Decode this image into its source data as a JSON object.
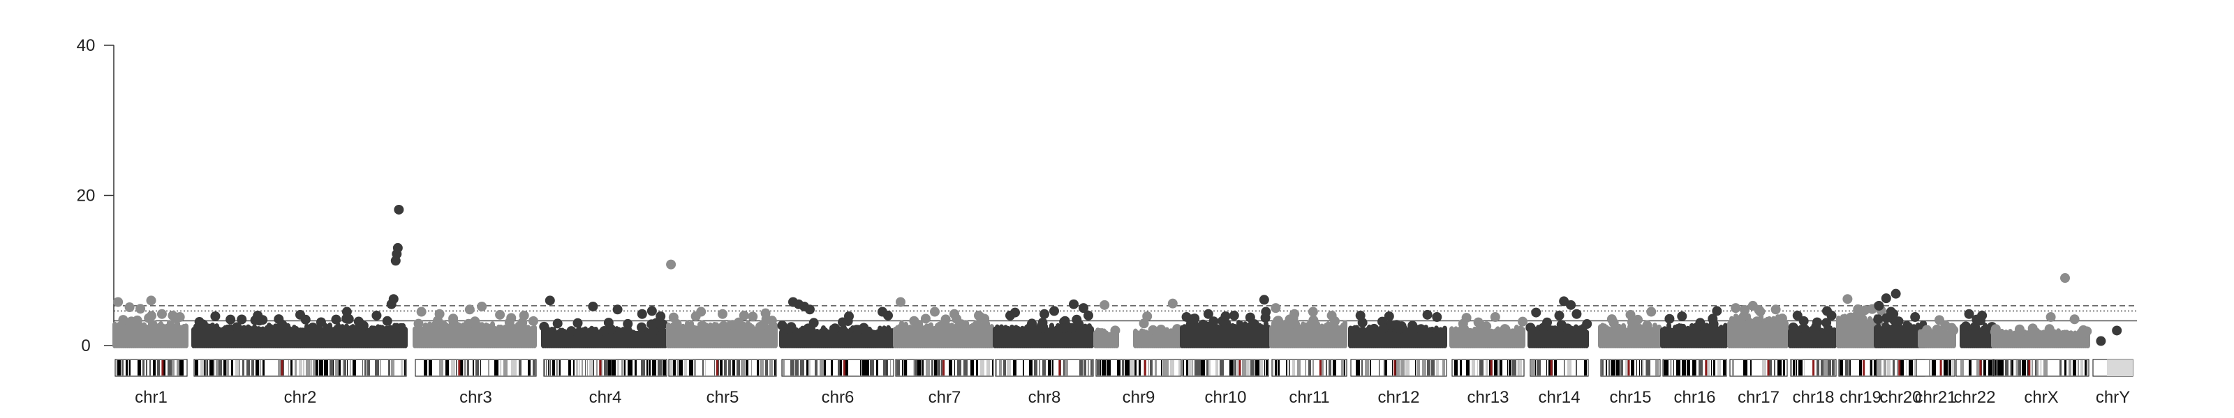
{
  "chart_data": {
    "type": "scatter",
    "title": "",
    "xlabel": "",
    "ylabel": "",
    "ylim": [
      0,
      40
    ],
    "yticks": [
      0,
      20,
      40
    ],
    "threshold_lines": [
      {
        "value": 5.3,
        "style": "dashed"
      },
      {
        "value": 4.6,
        "style": "dotted"
      },
      {
        "value": 3.3,
        "style": "solid"
      }
    ],
    "colors": {
      "dark": "#3a3a3a",
      "light": "#8c8c8c",
      "axis": "#333333"
    },
    "chromosomes": [
      {
        "name": "chr1",
        "label": "chr1",
        "color": "light",
        "base_top": 3.4,
        "base_mid": 2.6,
        "sig": [
          [
            0.04,
            5.8
          ],
          [
            0.2,
            5.1
          ],
          [
            0.35,
            4.9
          ],
          [
            0.5,
            6.0
          ],
          [
            0.65,
            4.2
          ],
          [
            0.8,
            4.0
          ],
          [
            0.9,
            3.8
          ]
        ]
      },
      {
        "name": "chr2",
        "label": "chr2",
        "color": "dark",
        "base_top": 3.0,
        "base_mid": 2.3,
        "sig": [
          [
            0.1,
            3.9
          ],
          [
            0.3,
            4.0
          ],
          [
            0.5,
            4.1
          ],
          [
            0.72,
            4.5
          ],
          [
            0.86,
            4.0
          ],
          [
            0.93,
            5.5
          ],
          [
            0.94,
            6.2
          ],
          [
            0.95,
            11.3
          ],
          [
            0.955,
            12.2
          ],
          [
            0.96,
            13.0
          ],
          [
            0.965,
            18.1
          ]
        ]
      },
      {
        "name": "chr3",
        "label": "chr3",
        "color": "light",
        "base_top": 3.2,
        "base_mid": 2.5,
        "sig": [
          [
            0.05,
            4.5
          ],
          [
            0.2,
            4.2
          ],
          [
            0.45,
            4.8
          ],
          [
            0.55,
            5.2
          ],
          [
            0.7,
            4.1
          ],
          [
            0.9,
            4.0
          ]
        ]
      },
      {
        "name": "chr4",
        "label": "chr4",
        "color": "dark",
        "base_top": 2.6,
        "base_mid": 1.9,
        "sig": [
          [
            0.05,
            6.0
          ],
          [
            0.4,
            5.2
          ],
          [
            0.6,
            4.8
          ],
          [
            0.8,
            4.2
          ],
          [
            0.88,
            4.6
          ],
          [
            0.95,
            3.9
          ]
        ]
      },
      {
        "name": "chr5",
        "label": "chr5",
        "color": "light",
        "base_top": 3.3,
        "base_mid": 2.5,
        "sig": [
          [
            0.02,
            10.8
          ],
          [
            0.3,
            4.5
          ],
          [
            0.5,
            4.2
          ],
          [
            0.7,
            4.0
          ],
          [
            0.9,
            4.3
          ]
        ]
      },
      {
        "name": "chr6",
        "label": "chr6",
        "color": "dark",
        "base_top": 2.7,
        "base_mid": 2.0,
        "sig": [
          [
            0.1,
            5.8
          ],
          [
            0.15,
            5.5
          ],
          [
            0.2,
            5.2
          ],
          [
            0.25,
            4.8
          ],
          [
            0.6,
            3.9
          ],
          [
            0.9,
            4.5
          ],
          [
            0.95,
            4.0
          ]
        ]
      },
      {
        "name": "chr7",
        "label": "chr7",
        "color": "light",
        "base_top": 3.3,
        "base_mid": 2.5,
        "sig": [
          [
            0.05,
            5.8
          ],
          [
            0.4,
            4.5
          ],
          [
            0.6,
            4.2
          ],
          [
            0.85,
            4.0
          ]
        ]
      },
      {
        "name": "chr8",
        "label": "chr8",
        "color": "dark",
        "base_top": 3.0,
        "base_mid": 2.3,
        "sig": [
          [
            0.15,
            4.0
          ],
          [
            0.2,
            4.4
          ],
          [
            0.5,
            4.2
          ],
          [
            0.6,
            4.6
          ],
          [
            0.8,
            5.5
          ],
          [
            0.9,
            5.0
          ],
          [
            0.95,
            4.0
          ]
        ]
      },
      {
        "name": "chr9",
        "label": "chr9",
        "color": "light",
        "base_top": 2.4,
        "base_mid": 1.8,
        "gap": [
          0.25,
          0.45
        ],
        "sig": [
          [
            0.1,
            5.4
          ],
          [
            0.6,
            3.9
          ],
          [
            0.9,
            5.6
          ]
        ]
      },
      {
        "name": "chr10",
        "label": "chr10",
        "color": "dark",
        "base_top": 3.4,
        "base_mid": 2.6,
        "sig": [
          [
            0.3,
            4.2
          ],
          [
            0.5,
            3.9
          ],
          [
            0.6,
            4.0
          ],
          [
            0.95,
            6.1
          ],
          [
            0.97,
            4.5
          ]
        ]
      },
      {
        "name": "chr11",
        "label": "chr11",
        "color": "light",
        "base_top": 3.4,
        "base_mid": 2.6,
        "sig": [
          [
            0.05,
            5.0
          ],
          [
            0.3,
            4.2
          ],
          [
            0.55,
            4.5
          ],
          [
            0.8,
            4.0
          ]
        ]
      },
      {
        "name": "chr12",
        "label": "chr12",
        "color": "dark",
        "base_top": 2.8,
        "base_mid": 2.1,
        "sig": [
          [
            0.1,
            4.0
          ],
          [
            0.4,
            3.9
          ],
          [
            0.8,
            4.1
          ],
          [
            0.9,
            3.8
          ]
        ]
      },
      {
        "name": "chr13",
        "label": "chr13",
        "color": "light",
        "base_top": 2.8,
        "base_mid": 2.1,
        "sig": [
          [
            0.2,
            3.7
          ],
          [
            0.6,
            3.8
          ]
        ]
      },
      {
        "name": "chr14",
        "label": "chr14",
        "color": "dark",
        "base_top": 2.8,
        "base_mid": 2.1,
        "sig": [
          [
            0.1,
            4.4
          ],
          [
            0.5,
            4.0
          ],
          [
            0.58,
            5.9
          ],
          [
            0.7,
            5.4
          ],
          [
            0.8,
            4.2
          ]
        ]
      },
      {
        "name": "chr15",
        "label": "chr15",
        "color": "light",
        "base_top": 3.0,
        "base_mid": 2.3,
        "sig": [
          [
            0.5,
            4.1
          ],
          [
            0.85,
            4.5
          ]
        ]
      },
      {
        "name": "chr16",
        "label": "chr16",
        "color": "dark",
        "base_top": 3.0,
        "base_mid": 2.3,
        "sig": [
          [
            0.3,
            3.9
          ],
          [
            0.85,
            4.6
          ]
        ]
      },
      {
        "name": "chr17",
        "label": "chr17",
        "color": "light",
        "base_top": 4.2,
        "base_mid": 3.0,
        "sig": [
          [
            0.1,
            5.0
          ],
          [
            0.4,
            5.3
          ],
          [
            0.8,
            4.8
          ]
        ]
      },
      {
        "name": "chr18",
        "label": "chr18",
        "color": "dark",
        "base_top": 2.7,
        "base_mid": 2.0,
        "sig": [
          [
            0.15,
            4.0
          ],
          [
            0.8,
            4.6
          ],
          [
            0.9,
            4.0
          ]
        ]
      },
      {
        "name": "chr19",
        "label": "chr19",
        "color": "light",
        "base_top": 4.3,
        "base_mid": 3.1,
        "sig": [
          [
            0.2,
            6.2
          ],
          [
            0.6,
            4.7
          ],
          [
            0.9,
            5.2
          ]
        ]
      },
      {
        "name": "chr20",
        "label": "chr20",
        "color": "dark",
        "base_top": 3.3,
        "base_mid": 2.5,
        "sig": [
          [
            0.05,
            5.3
          ],
          [
            0.2,
            6.3
          ],
          [
            0.3,
            4.5
          ],
          [
            0.35,
            4.2
          ],
          [
            0.4,
            6.9
          ],
          [
            0.8,
            3.8
          ]
        ]
      },
      {
        "name": "chr21",
        "label": "chr21",
        "color": "light",
        "base_top": 2.6,
        "base_mid": 1.9,
        "gap": [
          0.0,
          0.1
        ],
        "sig": [
          [
            0.6,
            3.4
          ]
        ]
      },
      {
        "name": "chr22",
        "label": "chr22",
        "color": "dark",
        "base_top": 3.0,
        "base_mid": 2.3,
        "gap": [
          0.0,
          0.15
        ],
        "sig": [
          [
            0.35,
            4.2
          ],
          [
            0.7,
            4.0
          ]
        ]
      },
      {
        "name": "chrX",
        "label": "chrX",
        "color": "light",
        "base_top": 2.3,
        "base_mid": 1.7,
        "sig": [
          [
            0.6,
            3.8
          ],
          [
            0.75,
            9.0
          ],
          [
            0.85,
            3.5
          ]
        ]
      },
      {
        "name": "chrY",
        "label": "chrY",
        "color": "dark",
        "base_top": 0,
        "base_mid": 0,
        "sig": [
          [
            0.2,
            0.6
          ],
          [
            0.6,
            2.0
          ]
        ]
      }
    ]
  }
}
